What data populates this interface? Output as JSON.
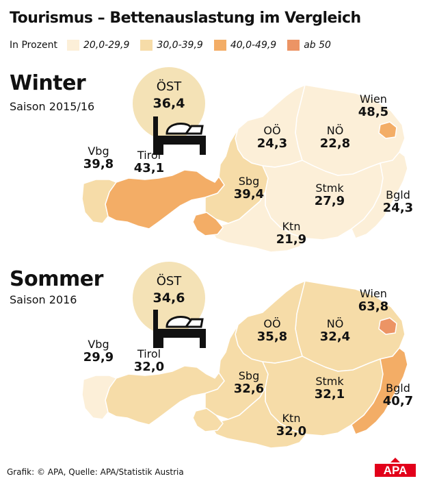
{
  "title": "Tourismus – Bettenauslastung im Vergleich",
  "legend": {
    "unit": "In Prozent",
    "items": [
      {
        "label": "20,0-29,9",
        "color": "#fcefd8"
      },
      {
        "label": "30,0-39,9",
        "color": "#f6dca8"
      },
      {
        "label": "40,0-49,9",
        "color": "#f3ad66"
      },
      {
        "label": "ab 50",
        "color": "#ec9465"
      }
    ]
  },
  "winter": {
    "title": "Winter",
    "subtitle": "Saison 2015/16",
    "total": {
      "name": "ÖST",
      "value": "36,4"
    },
    "regions": [
      {
        "id": "vbg",
        "name": "Vbg",
        "value": "39,8",
        "color": "#f6dca8"
      },
      {
        "id": "tirol",
        "name": "Tirol",
        "value": "43,1",
        "color": "#f3ad66"
      },
      {
        "id": "sbg",
        "name": "Sbg",
        "value": "39,4",
        "color": "#f6dca8"
      },
      {
        "id": "ooe",
        "name": "OÖ",
        "value": "24,3",
        "color": "#fcefd8"
      },
      {
        "id": "noe",
        "name": "NÖ",
        "value": "22,8",
        "color": "#fcefd8"
      },
      {
        "id": "wien",
        "name": "Wien",
        "value": "48,5",
        "color": "#f3ad66"
      },
      {
        "id": "stmk",
        "name": "Stmk",
        "value": "27,9",
        "color": "#fcefd8"
      },
      {
        "id": "ktn",
        "name": "Ktn",
        "value": "21,9",
        "color": "#fcefd8"
      },
      {
        "id": "bgld",
        "name": "Bgld",
        "value": "24,3",
        "color": "#fcefd8"
      }
    ]
  },
  "sommer": {
    "title": "Sommer",
    "subtitle": "Saison 2016",
    "total": {
      "name": "ÖST",
      "value": "34,6"
    },
    "regions": [
      {
        "id": "vbg",
        "name": "Vbg",
        "value": "29,9",
        "color": "#fcefd8"
      },
      {
        "id": "tirol",
        "name": "Tirol",
        "value": "32,0",
        "color": "#f6dca8"
      },
      {
        "id": "sbg",
        "name": "Sbg",
        "value": "32,6",
        "color": "#f6dca8"
      },
      {
        "id": "ooe",
        "name": "OÖ",
        "value": "35,8",
        "color": "#f6dca8"
      },
      {
        "id": "noe",
        "name": "NÖ",
        "value": "32,4",
        "color": "#f6dca8"
      },
      {
        "id": "wien",
        "name": "Wien",
        "value": "63,8",
        "color": "#ec9465"
      },
      {
        "id": "stmk",
        "name": "Stmk",
        "value": "32,1",
        "color": "#f6dca8"
      },
      {
        "id": "ktn",
        "name": "Ktn",
        "value": "32,0",
        "color": "#f6dca8"
      },
      {
        "id": "bgld",
        "name": "Bgld",
        "value": "40,7",
        "color": "#f3ad66"
      }
    ]
  },
  "credit": "Grafik: © APA, Quelle: APA/Statistik Austria",
  "logo": {
    "text": "APA",
    "color": "#e2001a"
  },
  "icons": {
    "bed": "bed-icon"
  }
}
